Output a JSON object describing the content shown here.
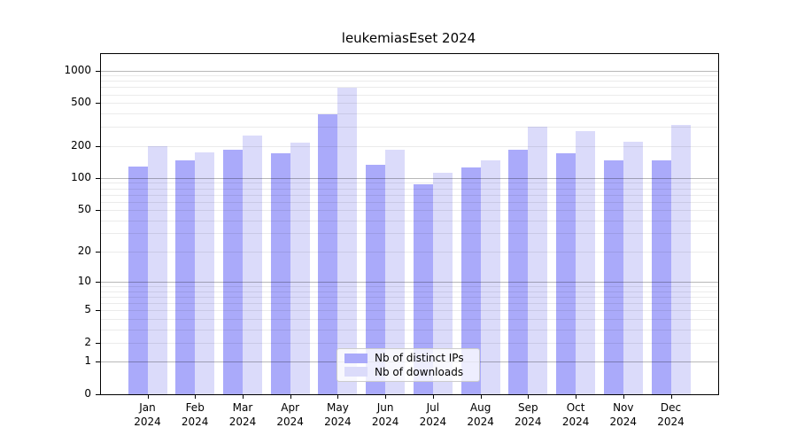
{
  "chart_data": {
    "type": "bar",
    "title": "leukemiasEset 2024",
    "xlabel": "",
    "ylabel": "",
    "yscale": "log1p",
    "ylim": [
      0,
      1390
    ],
    "grid": "horizontal (log minor + major)",
    "legend_position": "bottom-center inside plot",
    "y_tick_labels": [
      0,
      1,
      2,
      5,
      10,
      20,
      50,
      100,
      200,
      500,
      1000
    ],
    "categories": [
      {
        "month": "Jan",
        "year": "2024"
      },
      {
        "month": "Feb",
        "year": "2024"
      },
      {
        "month": "Mar",
        "year": "2024"
      },
      {
        "month": "Apr",
        "year": "2024"
      },
      {
        "month": "May",
        "year": "2024"
      },
      {
        "month": "Jun",
        "year": "2024"
      },
      {
        "month": "Jul",
        "year": "2024"
      },
      {
        "month": "Aug",
        "year": "2024"
      },
      {
        "month": "Sep",
        "year": "2024"
      },
      {
        "month": "Oct",
        "year": "2024"
      },
      {
        "month": "Nov",
        "year": "2024"
      },
      {
        "month": "Dec",
        "year": "2024"
      }
    ],
    "series": [
      {
        "name": "Nb of distinct IPs",
        "color": "#aaaafa",
        "values": [
          127,
          145,
          182,
          169,
          390,
          132,
          87,
          125,
          183,
          169,
          145,
          145
        ]
      },
      {
        "name": "Nb of downloads",
        "color": "#dbdbfa",
        "values": [
          197,
          172,
          247,
          212,
          695,
          182,
          111,
          146,
          299,
          272,
          220,
          310
        ]
      }
    ],
    "colors": {
      "axis": "#000000",
      "text": "#000000",
      "grid_major": "#b3b3b3",
      "grid_minor": "#ebebeb",
      "legend_border": "#cccccc"
    }
  }
}
